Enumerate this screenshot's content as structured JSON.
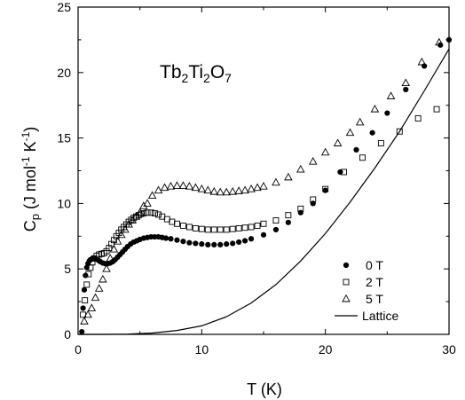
{
  "chart_data": {
    "type": "scatter",
    "title": "",
    "annotation": {
      "main": "Tb",
      "sub1": "2",
      "mid1": "Ti",
      "sub2": "2",
      "mid2": "O",
      "sub3": "7"
    },
    "xlabel": "T (K)",
    "ylabel": {
      "c": "C",
      "p": "p",
      "rest1": " (J mol",
      "exp1": "-1",
      "rest2": " K",
      "exp2": "-1",
      "close": ")"
    },
    "xlim": [
      0,
      30
    ],
    "ylim": [
      0,
      25
    ],
    "xticks": [
      0,
      10,
      20,
      30
    ],
    "yticks": [
      0,
      5,
      10,
      15,
      20,
      25
    ],
    "legend_position": "bottom-right",
    "series": [
      {
        "name": "0 T",
        "marker": "filled-circle",
        "x": [
          0.3,
          0.4,
          0.5,
          0.6,
          0.7,
          0.8,
          0.9,
          1.0,
          1.1,
          1.2,
          1.35,
          1.5,
          1.65,
          1.8,
          2.0,
          2.2,
          2.4,
          2.6,
          2.8,
          3.0,
          3.2,
          3.4,
          3.6,
          3.8,
          4.0,
          4.25,
          4.5,
          4.75,
          5.0,
          5.3,
          5.6,
          5.9,
          6.2,
          6.5,
          6.8,
          7.1,
          7.5,
          8.0,
          8.5,
          9.0,
          9.5,
          10.0,
          10.5,
          11.0,
          11.5,
          12.0,
          12.5,
          13.0,
          13.5,
          14.0,
          15.0,
          16.0,
          17.0,
          18.0,
          19.0,
          20.0,
          21.2,
          22.5,
          23.8,
          25.0,
          26.5,
          28.0,
          29.3,
          30.0
        ],
        "y": [
          0.2,
          2.0,
          3.4,
          4.5,
          5.1,
          5.4,
          5.6,
          5.7,
          5.75,
          5.8,
          5.8,
          5.75,
          5.65,
          5.55,
          5.45,
          5.4,
          5.4,
          5.45,
          5.55,
          5.7,
          5.9,
          6.1,
          6.3,
          6.5,
          6.7,
          6.9,
          7.05,
          7.15,
          7.25,
          7.35,
          7.4,
          7.45,
          7.45,
          7.45,
          7.4,
          7.35,
          7.3,
          7.2,
          7.1,
          7.0,
          6.95,
          6.9,
          6.85,
          6.85,
          6.85,
          6.9,
          6.95,
          7.05,
          7.15,
          7.3,
          7.6,
          8.0,
          8.55,
          9.3,
          10.0,
          11.0,
          12.4,
          14.1,
          15.4,
          16.9,
          18.7,
          20.5,
          22.1,
          22.5
        ]
      },
      {
        "name": "2 T",
        "marker": "open-square",
        "x": [
          0.4,
          0.55,
          0.7,
          0.85,
          1.0,
          1.15,
          1.3,
          1.5,
          1.7,
          1.9,
          2.1,
          2.3,
          2.5,
          2.7,
          2.9,
          3.1,
          3.3,
          3.5,
          3.7,
          3.9,
          4.1,
          4.3,
          4.5,
          4.7,
          4.9,
          5.1,
          5.3,
          5.6,
          5.9,
          6.2,
          6.5,
          6.8,
          7.2,
          7.6,
          8.0,
          8.5,
          9.0,
          9.5,
          10.0,
          10.5,
          11.0,
          11.5,
          12.0,
          12.5,
          13.0,
          13.5,
          14.0,
          14.5,
          15.0,
          16.0,
          17.0,
          18.0,
          19.0,
          20.0,
          21.5,
          23.0,
          24.5,
          26.0,
          27.5,
          29.0
        ],
        "y": [
          1.5,
          2.6,
          3.8,
          4.6,
          5.1,
          5.5,
          5.8,
          6.0,
          6.1,
          6.15,
          6.2,
          6.35,
          6.6,
          6.9,
          7.2,
          7.5,
          7.75,
          8.0,
          8.2,
          8.4,
          8.6,
          8.75,
          8.9,
          9.0,
          9.1,
          9.2,
          9.25,
          9.3,
          9.3,
          9.25,
          9.15,
          9.0,
          8.8,
          8.6,
          8.45,
          8.3,
          8.2,
          8.1,
          8.05,
          8.0,
          8.0,
          8.0,
          8.0,
          8.05,
          8.1,
          8.15,
          8.2,
          8.3,
          8.45,
          8.7,
          9.1,
          9.6,
          10.3,
          11.1,
          12.4,
          13.5,
          14.6,
          15.5,
          16.5,
          17.2
        ]
      },
      {
        "name": "5 T",
        "marker": "open-triangle",
        "x": [
          0.5,
          0.8,
          1.1,
          1.4,
          1.7,
          2.0,
          2.3,
          2.6,
          2.9,
          3.2,
          3.5,
          3.8,
          4.1,
          4.4,
          4.7,
          5.0,
          5.3,
          5.6,
          6.0,
          6.5,
          7.0,
          7.5,
          8.0,
          8.5,
          9.0,
          9.5,
          10.0,
          10.5,
          11.0,
          11.5,
          12.0,
          12.5,
          13.0,
          13.5,
          14.0,
          14.5,
          15.0,
          16.0,
          17.0,
          18.0,
          19.0,
          20.0,
          21.0,
          22.0,
          22.8,
          24.0,
          25.3,
          26.5,
          27.8,
          29.2
        ],
        "y": [
          1.0,
          1.5,
          2.0,
          2.8,
          3.5,
          4.2,
          5.0,
          5.8,
          6.5,
          7.1,
          7.6,
          8.0,
          8.4,
          8.7,
          9.0,
          9.3,
          9.8,
          10.0,
          10.6,
          11.0,
          11.2,
          11.3,
          11.35,
          11.35,
          11.3,
          11.2,
          11.1,
          11.0,
          10.9,
          10.85,
          10.85,
          10.9,
          10.95,
          11.0,
          11.1,
          11.2,
          11.3,
          11.6,
          12.0,
          12.6,
          13.2,
          13.9,
          14.6,
          15.4,
          16.2,
          17.2,
          18.2,
          19.2,
          20.8,
          22.3
        ]
      },
      {
        "name": "Lattice",
        "marker": "line",
        "x": [
          0,
          2,
          4,
          6,
          8,
          10,
          12,
          14,
          16,
          18,
          20,
          22,
          24,
          26,
          28,
          30
        ],
        "y": [
          0,
          0.0,
          0.02,
          0.1,
          0.3,
          0.65,
          1.35,
          2.4,
          3.8,
          5.6,
          7.7,
          10.1,
          12.7,
          15.5,
          18.6,
          21.8
        ]
      }
    ]
  }
}
